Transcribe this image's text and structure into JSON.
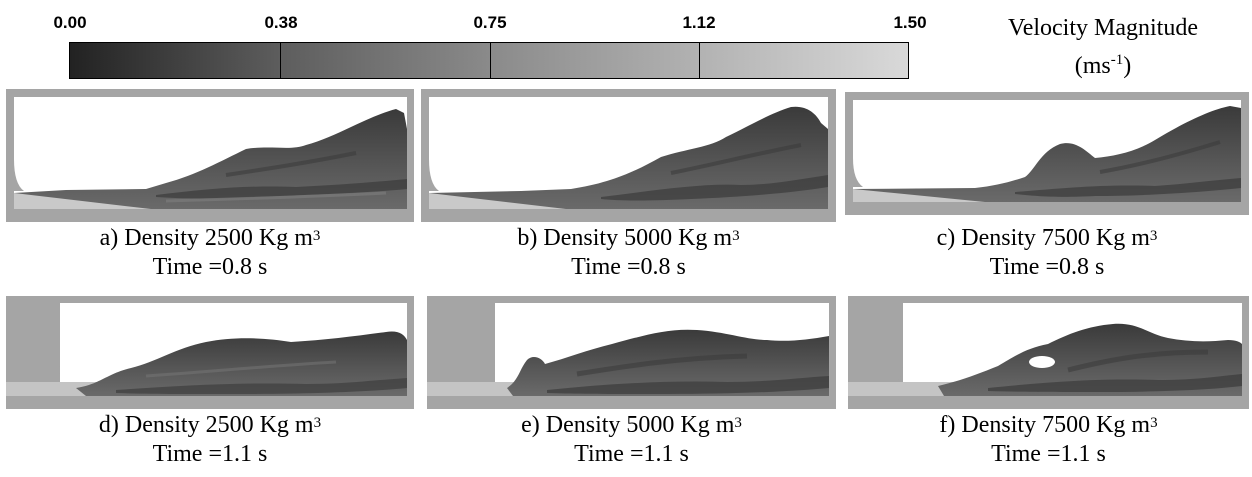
{
  "colorbar": {
    "ticks": [
      "0.00",
      "0.38",
      "0.75",
      "1.12",
      "1.50"
    ],
    "title_line1": "Velocity Magnitude",
    "title_unit": "(ms",
    "title_unit_sup": "-1",
    "title_unit_close": ")",
    "gradient": [
      "#222222",
      "#d9d9d9"
    ]
  },
  "panels": [
    {
      "label": "a) Density 2500 Kg m",
      "sup": "3",
      "time": "Time =0.8 s"
    },
    {
      "label": "b) Density 5000 Kg m",
      "sup": "3",
      "time": "Time =0.8 s"
    },
    {
      "label": "c) Density 7500 Kg m",
      "sup": "3",
      "time": "Time =0.8 s"
    },
    {
      "label": "d) Density 2500 Kg m",
      "sup": "3",
      "time": "Time =1.1 s"
    },
    {
      "label": "e) Density 5000 Kg m",
      "sup": "3",
      "time": "Time =1.1 s"
    },
    {
      "label": "f) Density 7500 Kg m",
      "sup": "3",
      "time": "Time =1.1 s"
    }
  ],
  "colors": {
    "wall": "#a5a5a5",
    "fluid_dark": "#4a4a4a",
    "fluid_light": "#c8c8c8"
  }
}
